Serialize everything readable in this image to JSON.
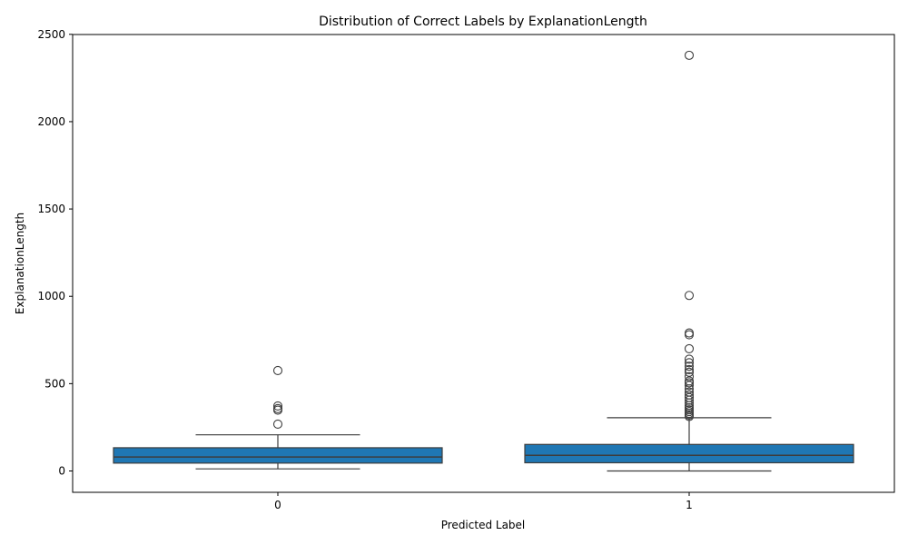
{
  "chart_data": {
    "type": "box",
    "title": "Distribution of Correct Labels by ExplanationLength",
    "xlabel": "Predicted Label",
    "ylabel": "ExplanationLength",
    "categories": [
      "0",
      "1"
    ],
    "yticks": [
      "0",
      "500",
      "1000",
      "1500",
      "2000",
      "2500"
    ],
    "ylim": [
      -120,
      2500
    ],
    "grid": false,
    "box_color": "#1f77b4",
    "line_color": "#3d3d3d",
    "boxes": [
      {
        "category": "0",
        "whisker_low": 12,
        "q1": 45,
        "median": 80,
        "q3": 133,
        "whisker_high": 207,
        "outliers": [
          268,
          348,
          357,
          372,
          575
        ]
      },
      {
        "category": "1",
        "whisker_low": 0,
        "q1": 47,
        "median": 90,
        "q3": 152,
        "whisker_high": 305,
        "outliers": [
          312,
          320,
          330,
          340,
          350,
          362,
          375,
          390,
          405,
          420,
          435,
          452,
          470,
          490,
          505,
          515,
          540,
          565,
          580,
          600,
          620,
          640,
          700,
          780,
          790,
          1005,
          2380
        ]
      }
    ]
  }
}
